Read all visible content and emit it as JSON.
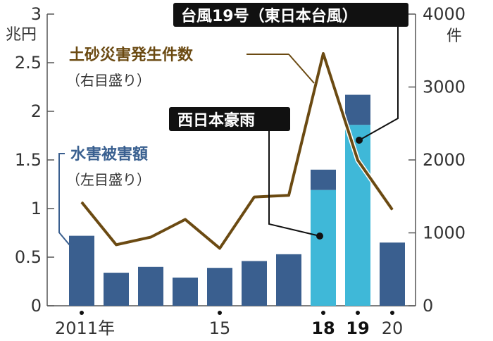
{
  "chart_data": {
    "type": "bar+line",
    "categories": [
      "2011",
      "2012",
      "2013",
      "2014",
      "2015",
      "2016",
      "2017",
      "2018",
      "2019",
      "2020"
    ],
    "x_tick_labels": {
      "0": "2011年",
      "4": "15",
      "7": "18",
      "8": "19",
      "9": "20"
    },
    "bold_x_ticks": [
      7,
      8
    ],
    "y_left": {
      "unit": "兆円",
      "ticks": [
        "0",
        "0.5",
        "1",
        "1.5",
        "2",
        "2.5",
        "3"
      ],
      "range": [
        0,
        3
      ]
    },
    "y_right": {
      "unit": "件",
      "ticks": [
        "0",
        "1000",
        "2000",
        "3000",
        "4000"
      ],
      "range": [
        0,
        4000
      ]
    },
    "series_bar": {
      "name": "水害被害額",
      "sub": "（左目盛り）",
      "values": [
        0.72,
        0.34,
        0.4,
        0.29,
        0.39,
        0.46,
        0.53,
        1.4,
        2.17,
        0.65
      ],
      "highlight": {
        "7": {
          "split": 1.19
        },
        "8": {
          "split": 1.86
        }
      }
    },
    "series_line": {
      "name": "土砂災害発生件数",
      "sub": "（右目盛り）",
      "values": [
        1420,
        837,
        941,
        1184,
        788,
        1492,
        1514,
        3459,
        1996,
        1319
      ]
    },
    "annotations": [
      {
        "text": "台風19号（東日本台風）",
        "target_index": 8
      },
      {
        "text": "西日本豪雨",
        "target_index": 7
      }
    ],
    "colors": {
      "bar": "#3a5f8f",
      "bar_highlight": "#3fb8d8",
      "line": "#6b4a12",
      "label_box": "#111111"
    }
  }
}
